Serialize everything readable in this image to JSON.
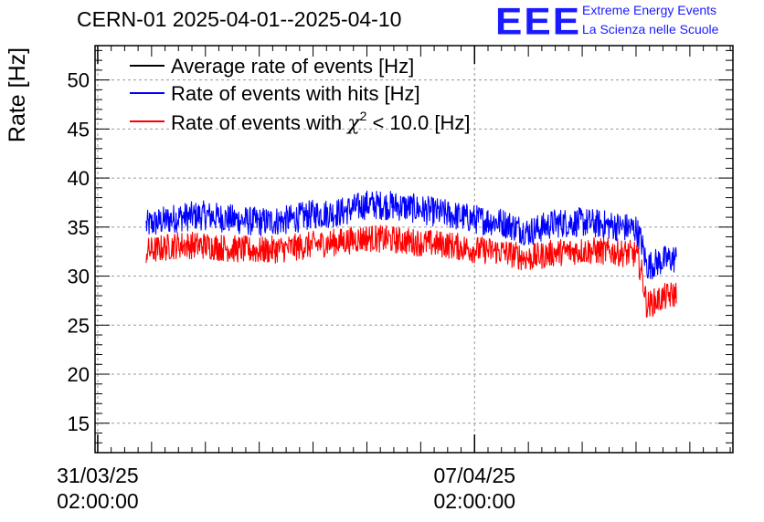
{
  "logo": {
    "mark": "EEE",
    "line1": "Extreme Energy Events",
    "line2": "La Scienza nelle Scuole",
    "color": "#1a1aff"
  },
  "chart_data": {
    "type": "line",
    "title": "CERN-01 2025-04-01--2025-04-10",
    "xlabel": "",
    "ylabel": "Rate [Hz]",
    "ylim": [
      12,
      53.5
    ],
    "xlim_days_from_2025_03_31": [
      -0.05,
      11.8
    ],
    "yticks": [
      15,
      20,
      25,
      30,
      35,
      40,
      45,
      50
    ],
    "xticks": [
      {
        "day": 0,
        "line1": "31/03/25",
        "line2": "02:00:00"
      },
      {
        "day": 7,
        "line1": "07/04/25",
        "line2": "02:00:00"
      }
    ],
    "grid": true,
    "legend": {
      "position": "top-left",
      "entries": [
        {
          "label": "Average rate of events [Hz]",
          "color": "#000000"
        },
        {
          "label": "Rate of events with hits [Hz]",
          "color": "#0000ff"
        },
        {
          "label_prefix": "Rate of events with ",
          "label_symbol": "χ",
          "label_sup": "2",
          "label_suffix": " < 10.0 [Hz]",
          "color": "#ff0000"
        }
      ]
    },
    "series": [
      {
        "name": "Rate of events with hits [Hz]",
        "color": "#0000ff",
        "noise": 1.5,
        "x": [
          0.9,
          1.5,
          2.0,
          2.5,
          3.0,
          3.5,
          4.0,
          4.5,
          5.0,
          5.5,
          6.0,
          6.5,
          7.0,
          7.5,
          8.0,
          8.5,
          9.0,
          9.5,
          10.0,
          10.1,
          10.2,
          10.5,
          10.75
        ],
        "values": [
          35.2,
          36.0,
          36.2,
          35.8,
          35.5,
          35.7,
          36.3,
          36.5,
          37.3,
          37.2,
          36.8,
          36.3,
          35.8,
          35.5,
          34.5,
          35.4,
          35.5,
          35.2,
          34.8,
          33.5,
          31.0,
          31.6,
          31.8
        ]
      },
      {
        "name": "Rate of events with chi2 < 10.0 [Hz]",
        "color": "#ff0000",
        "noise": 1.4,
        "x": [
          0.9,
          1.5,
          2.0,
          2.5,
          3.0,
          3.5,
          4.0,
          4.5,
          5.0,
          5.5,
          6.0,
          6.5,
          7.0,
          7.5,
          8.0,
          8.5,
          9.0,
          9.5,
          10.0,
          10.1,
          10.2,
          10.5,
          10.75
        ],
        "values": [
          32.5,
          33.2,
          33.1,
          32.8,
          32.6,
          32.8,
          33.2,
          33.5,
          33.9,
          33.7,
          33.4,
          33.2,
          32.7,
          32.5,
          31.8,
          32.4,
          32.6,
          32.5,
          32.2,
          30.5,
          27.0,
          27.8,
          28.2
        ]
      }
    ]
  }
}
